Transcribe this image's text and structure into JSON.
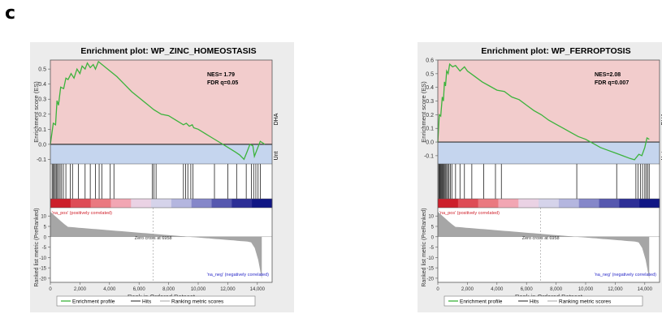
{
  "panel_label": "c",
  "chart_data": [
    {
      "type": "line",
      "title": "Enrichment plot: WP_ZINC_HOMEOSTASIS",
      "nes_text": "NES= 1.79",
      "fdr_text": "FDR q=0.05",
      "ylabel_top": "Enrichment score (ES)",
      "ylabel_bottom": "Ranked list metric (PreRanked)",
      "xlabel": "Rank in Ordered Dataset",
      "side_label_top": "DHA",
      "side_label_bottom": "Unt",
      "pos_label": "'na_pos' (positively correlated)",
      "neg_label": "'na_neg' (negatively correlated)",
      "zero_cross_text": "Zero cross at 6958",
      "zero_cross": 6958,
      "es_yticks": [
        "0.5",
        "0.4",
        "0.3",
        "0.2",
        "0.1",
        "0.0",
        "-0.1"
      ],
      "es_ylim": [
        -0.13,
        0.56
      ],
      "metric_yticks": [
        "10",
        "5",
        "0",
        "-5",
        "-10",
        "-15",
        "-20"
      ],
      "metric_ylim": [
        -22,
        14
      ],
      "xticks": [
        "0",
        "2,000",
        "4,000",
        "6,000",
        "8,000",
        "10,000",
        "12,000",
        "14,000"
      ],
      "xlim": [
        0,
        15000
      ],
      "es_profile": {
        "x": [
          0,
          200,
          350,
          450,
          550,
          700,
          900,
          1050,
          1200,
          1400,
          1600,
          1800,
          2000,
          2150,
          2350,
          2500,
          2700,
          2900,
          3050,
          3250,
          3500,
          4000,
          4500,
          5000,
          5500,
          6000,
          6500,
          7000,
          7500,
          8000,
          8500,
          9000,
          9200,
          9400,
          9600,
          9700,
          10000,
          10500,
          11000,
          11500,
          12000,
          12500,
          12800,
          13000,
          13100,
          13300,
          13500,
          13700,
          13800,
          14000,
          14200,
          14350,
          14500
        ],
        "y": [
          0,
          0.14,
          0.13,
          0.29,
          0.26,
          0.38,
          0.37,
          0.44,
          0.43,
          0.47,
          0.44,
          0.5,
          0.47,
          0.52,
          0.5,
          0.54,
          0.51,
          0.53,
          0.5,
          0.55,
          0.53,
          0.49,
          0.45,
          0.4,
          0.35,
          0.31,
          0.27,
          0.23,
          0.2,
          0.19,
          0.16,
          0.13,
          0.14,
          0.12,
          0.13,
          0.11,
          0.1,
          0.07,
          0.04,
          0.01,
          -0.02,
          -0.05,
          -0.07,
          -0.09,
          -0.1,
          -0.05,
          0.0,
          -0.01,
          -0.08,
          -0.03,
          0.02,
          0.01,
          0.0
        ]
      },
      "hits": [
        120,
        180,
        260,
        330,
        400,
        480,
        560,
        660,
        760,
        880,
        1050,
        1350,
        1500,
        1900,
        2350,
        2700,
        3050,
        3300,
        3480,
        4050,
        4300,
        6900,
        7000,
        7150,
        9000,
        9150,
        9300,
        9500,
        9650,
        11100,
        12000,
        12600,
        13250,
        13600,
        13750,
        13900,
        14050,
        14200
      ]
    },
    {
      "type": "line",
      "title": "Enrichment plot: WP_FERROPTOSIS",
      "nes_text": "NES=2.08",
      "fdr_text": "FDR q=0.007",
      "ylabel_top": "Enrichment score (ES)",
      "ylabel_bottom": "Ranked list metric (PreRanked)",
      "xlabel": "Rank in Ordered Dataset",
      "side_label_top": "DHA",
      "side_label_bottom": "Unt",
      "pos_label": "'na_pos' (positively correlated)",
      "neg_label": "'na_neg' (negatively correlated)",
      "zero_cross_text": "Zero cross at 6958",
      "zero_cross": 6958,
      "es_yticks": [
        "0.6",
        "0.5",
        "0.4",
        "0.3",
        "0.2",
        "0.1",
        "0.0",
        "-0.1"
      ],
      "es_ylim": [
        -0.16,
        0.6
      ],
      "metric_yticks": [
        "10",
        "5",
        "0",
        "-5",
        "-10",
        "-15",
        "-20"
      ],
      "metric_ylim": [
        -22,
        14
      ],
      "xticks": [
        "0",
        "2,000",
        "4,000",
        "6,000",
        "8,000",
        "10,000",
        "12,000",
        "14,000"
      ],
      "xlim": [
        0,
        15000
      ],
      "es_profile": {
        "x": [
          0,
          100,
          200,
          300,
          380,
          450,
          520,
          600,
          700,
          800,
          1000,
          1200,
          1500,
          1800,
          2000,
          2500,
          3000,
          3500,
          4000,
          4500,
          5000,
          5500,
          6000,
          6500,
          7000,
          7500,
          8000,
          8500,
          9000,
          9500,
          10000,
          10500,
          11000,
          11500,
          12000,
          12500,
          13000,
          13300,
          13600,
          13800,
          14000,
          14150,
          14300
        ],
        "y": [
          0,
          0.2,
          0.19,
          0.33,
          0.3,
          0.44,
          0.41,
          0.52,
          0.5,
          0.57,
          0.55,
          0.56,
          0.52,
          0.55,
          0.52,
          0.48,
          0.44,
          0.41,
          0.38,
          0.37,
          0.33,
          0.31,
          0.27,
          0.23,
          0.2,
          0.16,
          0.13,
          0.1,
          0.07,
          0.04,
          0.02,
          -0.01,
          -0.04,
          -0.06,
          -0.08,
          -0.1,
          -0.12,
          -0.13,
          -0.09,
          -0.1,
          -0.04,
          0.03,
          0.02
        ]
      },
      "hits": [
        60,
        110,
        160,
        210,
        260,
        310,
        360,
        420,
        480,
        540,
        600,
        680,
        760,
        850,
        950,
        1200,
        1500,
        1800,
        2300,
        3100,
        3900,
        4300,
        9400,
        12100,
        13400,
        13550,
        13700,
        13850,
        14000,
        14100,
        14200,
        14300
      ]
    }
  ],
  "legend": {
    "enrichment_profile": "Enrichment profile",
    "hits": "Hits",
    "ranking": "Ranking metric scores"
  },
  "colors": {
    "es_line": "#3cb33c",
    "positive_bg": "#f2cccc",
    "negative_bg": "#c5d5ee",
    "hits": "#202020",
    "pos_text": "#d0202a",
    "neg_text": "#2a2ac8",
    "metric_fill": "#a6a6a6",
    "panel_bg": "#ececec",
    "heat": [
      "#cc1f2b",
      "#de4c56",
      "#ea7980",
      "#f2a6b3",
      "#ead2e4",
      "#d5d3ea",
      "#b4b6df",
      "#8587c9",
      "#5658af",
      "#2d2f96",
      "#101684"
    ]
  }
}
